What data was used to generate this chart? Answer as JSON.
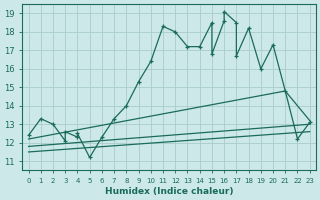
{
  "title": "",
  "xlabel": "Humidex (Indice chaleur)",
  "bg_color": "#cce8e8",
  "grid_color": "#aacccc",
  "line_color": "#1a6b5a",
  "xlim": [
    -0.5,
    23.5
  ],
  "ylim": [
    10.5,
    19.5
  ],
  "yticks": [
    11,
    12,
    13,
    14,
    15,
    16,
    17,
    18,
    19
  ],
  "xticks": [
    0,
    1,
    2,
    3,
    4,
    5,
    6,
    7,
    8,
    9,
    10,
    11,
    12,
    13,
    14,
    15,
    16,
    17,
    18,
    19,
    20,
    21,
    22,
    23
  ],
  "main_line_x": [
    0,
    1,
    2,
    3,
    3,
    4,
    4,
    5,
    6,
    7,
    8,
    9,
    10,
    11,
    12,
    13,
    14,
    15,
    15,
    16,
    16,
    17,
    17,
    18,
    19,
    20,
    21,
    22,
    23
  ],
  "main_line_y": [
    12.4,
    13.3,
    13.0,
    12.1,
    12.6,
    12.3,
    12.5,
    11.2,
    12.3,
    13.3,
    14.0,
    15.3,
    16.4,
    18.3,
    18.0,
    17.2,
    17.2,
    18.5,
    16.8,
    18.6,
    19.1,
    18.5,
    16.7,
    18.2,
    16.0,
    17.3,
    14.8,
    12.2,
    13.1
  ],
  "upper_line_x": [
    0,
    21,
    22,
    23
  ],
  "upper_line_y": [
    12.2,
    14.8,
    14.0,
    13.2
  ],
  "mid_line_x": [
    0,
    23
  ],
  "mid_line_y": [
    11.8,
    13.0
  ],
  "lower_line_x": [
    0,
    23
  ],
  "lower_line_y": [
    11.5,
    12.6
  ]
}
